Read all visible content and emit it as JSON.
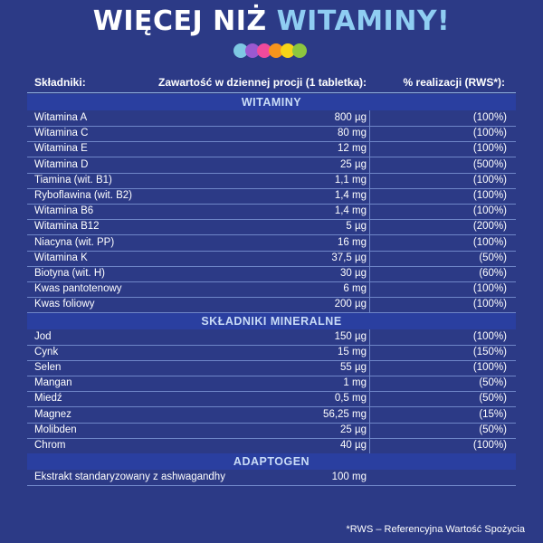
{
  "title": {
    "part1": "WIĘCEJ NIŻ ",
    "part2": "WITAMINY!"
  },
  "dot_colors": [
    "#7ec8e3",
    "#9b59d0",
    "#f04a9c",
    "#f7941d",
    "#f7d417",
    "#8dc63f"
  ],
  "header": {
    "col1": "Składniki:",
    "col2": "Zawartość w dziennej procji (1 tabletka):",
    "col3": "% realizacji (RWS*):"
  },
  "sections": {
    "vitamins": "WITAMINY",
    "minerals": "SKŁADNIKI  MINERALNE",
    "adaptogen": "ADAPTOGEN"
  },
  "vitamins": [
    {
      "name": "Witamina A",
      "amount": "800 µg",
      "pct": "(100%)"
    },
    {
      "name": "Witamina C",
      "amount": "80 mg",
      "pct": "(100%)"
    },
    {
      "name": "Witamina E",
      "amount": "12 mg",
      "pct": "(100%)"
    },
    {
      "name": "Witamina D",
      "amount": "25 µg",
      "pct": "(500%)"
    },
    {
      "name": "Tiamina (wit. B1)",
      "amount": "1,1 mg",
      "pct": "(100%)"
    },
    {
      "name": "Ryboflawina (wit. B2)",
      "amount": "1,4 mg",
      "pct": "(100%)"
    },
    {
      "name": "Witamina B6",
      "amount": "1,4 mg",
      "pct": "(100%)"
    },
    {
      "name": "Witamina B12",
      "amount": "5 µg",
      "pct": "(200%)"
    },
    {
      "name": "Niacyna (wit. PP)",
      "amount": "16 mg",
      "pct": "(100%)"
    },
    {
      "name": "Witamina K",
      "amount": "37,5 µg",
      "pct": "(50%)"
    },
    {
      "name": "Biotyna (wit. H)",
      "amount": "30 µg",
      "pct": "(60%)"
    },
    {
      "name": "Kwas pantotenowy",
      "amount": "6 mg",
      "pct": "(100%)"
    },
    {
      "name": "Kwas foliowy",
      "amount": "200 µg",
      "pct": "(100%)"
    }
  ],
  "minerals": [
    {
      "name": "Jod",
      "amount": "150 µg",
      "pct": "(100%)"
    },
    {
      "name": "Cynk",
      "amount": "15 mg",
      "pct": "(150%)"
    },
    {
      "name": "Selen",
      "amount": "55 µg",
      "pct": "(100%)"
    },
    {
      "name": "Mangan",
      "amount": "1 mg",
      "pct": "(50%)"
    },
    {
      "name": "Miedź",
      "amount": "0,5 mg",
      "pct": "(50%)"
    },
    {
      "name": "Magnez",
      "amount": "56,25 mg",
      "pct": "(15%)"
    },
    {
      "name": "Molibden",
      "amount": "25 µg",
      "pct": "(50%)"
    },
    {
      "name": "Chrom",
      "amount": "40 µg",
      "pct": "(100%)"
    }
  ],
  "adaptogen": [
    {
      "name": "Ekstrakt standaryzowany z ashwagandhy",
      "amount": "100 mg",
      "pct": ""
    }
  ],
  "footer": "*RWS – Referencyjna Wartość Spożycia"
}
